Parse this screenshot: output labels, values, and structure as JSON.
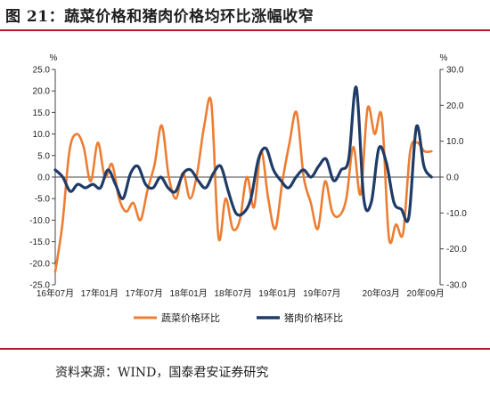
{
  "title": "图 21：蔬菜价格和猪肉价格均环比涨幅收窄",
  "source": "资料来源：WIND，国泰君安证券研究",
  "chart_data": {
    "type": "line",
    "left_axis_unit": "%",
    "right_axis_unit": "%",
    "left_ylim": [
      -25,
      25
    ],
    "right_ylim": [
      -30,
      30
    ],
    "left_yticks": [
      "25.0",
      "20.0",
      "15.0",
      "10.0",
      "5.0",
      "0.0",
      "-5.0",
      "-10.0",
      "-15.0",
      "-20.0",
      "-25.0"
    ],
    "right_yticks": [
      "30.0",
      "20.0",
      "10.0",
      "0.0",
      "-10.0",
      "-20.0",
      "-30.0"
    ],
    "xticks": [
      "16年07月",
      "17年01月",
      "17年07月",
      "18年01月",
      "18年07月",
      "19年01月",
      "19年07月",
      "20年03月",
      "20年09月"
    ],
    "x_start": "2016-07",
    "x_end": "2020-10",
    "legend_position": "bottom",
    "series": [
      {
        "name": "蔬菜价格环比",
        "axis": "left",
        "color": "#ed7d31",
        "values": [
          -22,
          -11,
          6,
          10,
          7,
          -1,
          8,
          0,
          3,
          -5,
          -8,
          -6,
          -10,
          -3,
          3,
          12,
          0,
          -5,
          1,
          -5,
          1,
          12,
          17,
          -14,
          -5,
          -12,
          -10,
          0,
          -7,
          6,
          -5,
          -12,
          -1,
          8,
          15,
          0,
          -6,
          -12,
          -1,
          -8,
          -9,
          -5,
          7,
          -4,
          16,
          10,
          14,
          -14,
          -11,
          -13,
          6,
          8,
          6,
          6
        ],
        "months": [
          "2016-07",
          "2016-08",
          "2016-09",
          "2016-10",
          "2016-11",
          "2016-12",
          "2017-01",
          "2017-02",
          "2017-03",
          "2017-04",
          "2017-05",
          "2017-06",
          "2017-07",
          "2017-08",
          "2017-09",
          "2017-10",
          "2017-11",
          "2017-12",
          "2018-01",
          "2018-02",
          "2018-03",
          "2018-04",
          "2018-05",
          "2018-06",
          "2018-07",
          "2018-08",
          "2018-09",
          "2018-10",
          "2018-11",
          "2018-12",
          "2019-01",
          "2019-02",
          "2019-03",
          "2019-04",
          "2019-05",
          "2019-06",
          "2019-07",
          "2019-08",
          "2019-09",
          "2019-10",
          "2019-11",
          "2019-12",
          "2020-01",
          "2020-02",
          "2020-03",
          "2020-04",
          "2020-05",
          "2020-06",
          "2020-07",
          "2020-08",
          "2020-09",
          "2020-09",
          "2020-10",
          "2020-10"
        ]
      },
      {
        "name": "猪肉价格环比",
        "axis": "right",
        "color": "#1f3b67",
        "values": [
          2,
          0,
          -4,
          -2,
          -3,
          -2,
          -3,
          2,
          -2,
          -6,
          1,
          3,
          -2,
          -3,
          0,
          -3,
          -4,
          1,
          2,
          -1,
          -3,
          1,
          3,
          -4,
          -10,
          -10,
          -6,
          5,
          8,
          2,
          -1,
          -3,
          0,
          2,
          0,
          3,
          5,
          -1,
          2,
          5,
          25,
          -6,
          -7,
          8,
          4,
          -7,
          -9,
          -11,
          14,
          3,
          0
        ],
        "months": [
          "2016-07",
          "2016-08",
          "2016-09",
          "2016-10",
          "2016-11",
          "2016-12",
          "2017-01",
          "2017-02",
          "2017-03",
          "2017-04",
          "2017-05",
          "2017-06",
          "2017-07",
          "2017-08",
          "2017-09",
          "2017-10",
          "2017-11",
          "2017-12",
          "2018-01",
          "2018-02",
          "2018-03",
          "2018-04",
          "2018-05",
          "2018-06",
          "2018-07",
          "2018-08",
          "2018-09",
          "2018-10",
          "2018-11",
          "2018-12",
          "2019-01",
          "2019-02",
          "2019-03",
          "2019-04",
          "2019-05",
          "2019-06",
          "2019-07",
          "2019-08",
          "2019-09",
          "2019-10",
          "2019-11",
          "2019-12",
          "2020-01",
          "2020-02",
          "2020-03",
          "2020-04",
          "2020-05",
          "2020-06",
          "2020-07",
          "2020-08",
          "2020-09"
        ]
      }
    ]
  }
}
